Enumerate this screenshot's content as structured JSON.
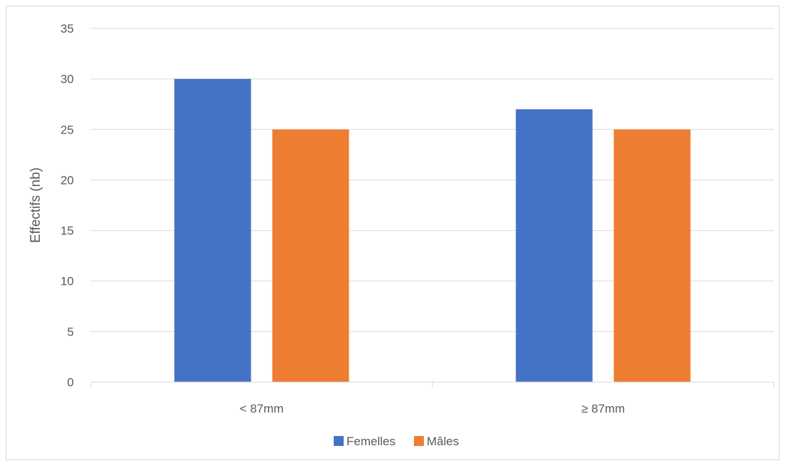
{
  "chart_data": {
    "type": "bar",
    "categories": [
      "< 87mm",
      "≥ 87mm"
    ],
    "series": [
      {
        "name": "Femelles",
        "values": [
          30,
          27
        ],
        "color": "#4472c4"
      },
      {
        "name": "Mâles",
        "values": [
          25,
          25
        ],
        "color": "#ed7d31"
      }
    ],
    "title": "",
    "xlabel": "",
    "ylabel": "Effectifs (nb)",
    "ylim": [
      0,
      35
    ],
    "yticks": [
      0,
      5,
      10,
      15,
      20,
      25,
      30,
      35
    ],
    "grid": true,
    "legend_position": "bottom"
  }
}
